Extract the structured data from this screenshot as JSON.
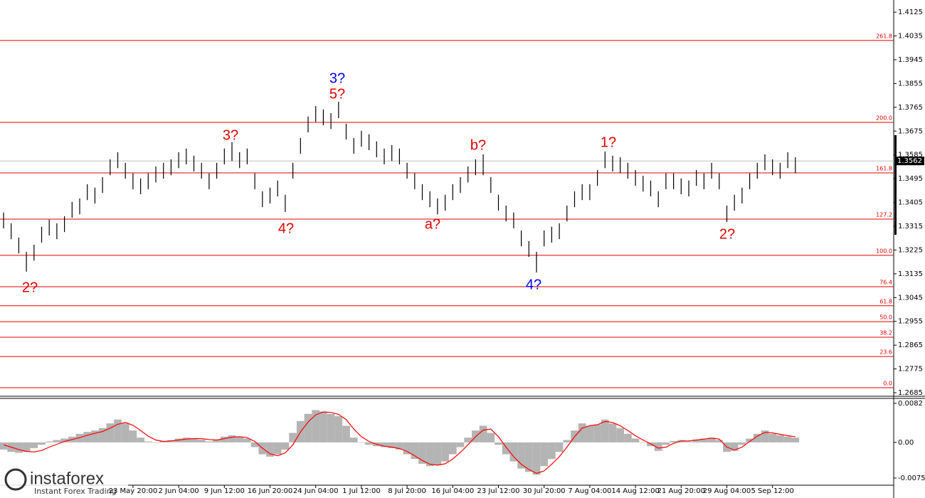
{
  "chart_data": [
    {
      "type": "ohlc-bar",
      "color": "#000000",
      "categories": [
        null,
        null,
        null,
        null,
        null,
        null,
        null,
        null,
        null,
        null,
        null,
        null,
        null,
        null,
        null,
        null,
        null,
        "23 May 20:00",
        null,
        null,
        null,
        null,
        null,
        "2 Jun 04:00",
        null,
        null,
        null,
        null,
        null,
        "9 Jun 12:00",
        null,
        null,
        null,
        null,
        null,
        "16 Jun 20:00",
        null,
        null,
        null,
        null,
        null,
        "24 Jun 04:00",
        null,
        null,
        null,
        null,
        null,
        "1 Jul 12:00",
        null,
        null,
        null,
        null,
        null,
        "8 Jul 20:00",
        null,
        null,
        null,
        null,
        null,
        "16 Jul 04:00",
        null,
        null,
        null,
        null,
        null,
        "23 Jul 12:00",
        null,
        null,
        null,
        null,
        null,
        "30 Jul 20:00",
        null,
        null,
        null,
        null,
        null,
        "7 Aug 04:00",
        null,
        null,
        null,
        null,
        null,
        "14 Aug 12:00",
        null,
        null,
        null,
        null,
        null,
        "21 Aug 20:00",
        null,
        null,
        null,
        null,
        null,
        "29 Aug 04:00",
        null,
        null,
        null,
        null,
        null,
        "5 Sep 12:00",
        null,
        null,
        null
      ],
      "high": [
        1.3367,
        1.3326,
        1.3272,
        1.3218,
        1.3245,
        1.3313,
        1.334,
        1.3326,
        1.3353,
        1.3407,
        1.342,
        1.3474,
        1.3461,
        1.3501,
        1.3568,
        1.3595,
        1.3555,
        1.3515,
        1.3496,
        1.3515,
        1.3541,
        1.3555,
        1.3568,
        1.3595,
        1.3609,
        1.3582,
        1.3555,
        1.3515,
        1.3555,
        1.3609,
        1.3633,
        1.3595,
        1.3609,
        1.3515,
        1.3447,
        1.3461,
        1.3488,
        1.3434,
        1.3555,
        1.3649,
        1.373,
        1.377,
        1.3757,
        1.3743,
        1.3786,
        1.3703,
        1.3649,
        1.3676,
        1.3663,
        1.3636,
        1.3609,
        1.3622,
        1.3609,
        1.3555,
        1.3515,
        1.3474,
        1.3447,
        1.342,
        1.3434,
        1.3474,
        1.3501,
        1.3541,
        1.3568,
        1.3587,
        1.3501,
        1.3434,
        1.3393,
        1.3367,
        1.3299,
        1.3259,
        1.3218,
        1.3299,
        1.3313,
        1.3326,
        1.3393,
        1.3447,
        1.3474,
        1.3474,
        1.3528,
        1.3598,
        1.3582,
        1.3576,
        1.3555,
        1.3528,
        1.3506,
        1.3488,
        1.3447,
        1.3515,
        1.3515,
        1.3496,
        1.3488,
        1.3528,
        1.3515,
        1.3555,
        1.3515,
        1.3393,
        1.3434,
        1.3461,
        1.3515,
        1.3555,
        1.3587,
        1.3568,
        1.3555,
        1.3595,
        1.3576
      ],
      "low": [
        1.3307,
        1.3266,
        1.3212,
        1.3143,
        1.3185,
        1.3253,
        1.328,
        1.3266,
        1.3293,
        1.3347,
        1.336,
        1.3414,
        1.3401,
        1.3441,
        1.3508,
        1.3535,
        1.3495,
        1.3455,
        1.3436,
        1.3455,
        1.3481,
        1.3495,
        1.3508,
        1.3535,
        1.3549,
        1.3522,
        1.3495,
        1.3455,
        1.3495,
        1.3549,
        1.3562,
        1.3535,
        1.3549,
        1.3455,
        1.3387,
        1.3401,
        1.3428,
        1.3369,
        1.3495,
        1.3589,
        1.367,
        1.371,
        1.3697,
        1.3683,
        1.3724,
        1.3643,
        1.3589,
        1.3616,
        1.3603,
        1.3576,
        1.3549,
        1.3562,
        1.3549,
        1.3495,
        1.3455,
        1.3414,
        1.3387,
        1.336,
        1.3374,
        1.3414,
        1.3441,
        1.3481,
        1.3508,
        1.3508,
        1.3441,
        1.3374,
        1.3333,
        1.3307,
        1.3239,
        1.3199,
        1.314,
        1.3239,
        1.3253,
        1.3266,
        1.3333,
        1.3387,
        1.3414,
        1.3414,
        1.3468,
        1.3535,
        1.3522,
        1.3516,
        1.3495,
        1.3468,
        1.3446,
        1.3428,
        1.3387,
        1.3455,
        1.3455,
        1.3436,
        1.3428,
        1.3468,
        1.3455,
        1.3495,
        1.3455,
        1.3331,
        1.3374,
        1.3401,
        1.3455,
        1.3495,
        1.3527,
        1.3508,
        1.3495,
        1.3535,
        1.3516
      ],
      "ylim": [
        1.2677,
        1.4171
      ],
      "yticks": [
        1.4125,
        1.4035,
        1.3945,
        1.3855,
        1.3765,
        1.3675,
        1.3585,
        1.3495,
        1.3405,
        1.3315,
        1.3225,
        1.3135,
        1.3045,
        1.2955,
        1.2865,
        1.2775,
        1.2685
      ],
      "last_price": 1.3562,
      "level_color": "#e00000",
      "levels": [
        {
          "label": "261.8",
          "price": 1.4018
        },
        {
          "label": "200.0",
          "price": 1.3708
        },
        {
          "label": "161.8",
          "price": 1.3517
        },
        {
          "label": "127.2",
          "price": 1.3342
        },
        {
          "label": "100.0",
          "price": 1.3205
        },
        {
          "label": "76.4",
          "price": 1.3086
        },
        {
          "label": "61.8",
          "price": 1.3014
        },
        {
          "label": "50.0",
          "price": 1.2954
        },
        {
          "label": "38.2",
          "price": 1.2895
        },
        {
          "label": "23.6",
          "price": 1.2822
        },
        {
          "label": "0.0",
          "price": 1.2704
        }
      ],
      "annotations": [
        {
          "text": "2?",
          "color": "#e00000"
        },
        {
          "text": "3?",
          "color": "#e00000"
        },
        {
          "text": "4?",
          "color": "#e00000"
        },
        {
          "text": "3?",
          "color": "#0000ff"
        },
        {
          "text": "5?",
          "color": "#e00000"
        },
        {
          "text": "a?",
          "color": "#e00000"
        },
        {
          "text": "b?",
          "color": "#e00000"
        },
        {
          "text": "4?",
          "color": "#0000ff"
        },
        {
          "text": "1?",
          "color": "#e00000"
        },
        {
          "text": "2?",
          "color": "#e00000"
        }
      ]
    },
    {
      "type": "macd",
      "histogram_color": "#b4b4b4",
      "signal_color": "#ff0000",
      "histogram": [
        -0.0015,
        -0.002,
        -0.0022,
        -0.002,
        -0.0012,
        -0.0005,
        0.0002,
        0.0005,
        0.0008,
        0.0012,
        0.0018,
        0.0022,
        0.0025,
        0.003,
        0.004,
        0.0048,
        0.004,
        0.0025,
        0.001,
        0.0002,
        -0.0001,
        0.0003,
        0.0005,
        0.0008,
        0.001,
        0.0009,
        0.0006,
        0.0002,
        0.0006,
        0.0012,
        0.0015,
        0.0012,
        0.0008,
        -0.001,
        -0.0025,
        -0.003,
        -0.0025,
        -0.0015,
        0.002,
        0.0045,
        0.006,
        0.0068,
        0.0065,
        0.006,
        0.0055,
        0.0035,
        0.001,
        0.0,
        -0.0005,
        -0.0008,
        -0.001,
        -0.0012,
        -0.0015,
        -0.0025,
        -0.0035,
        -0.0045,
        -0.005,
        -0.0048,
        -0.004,
        -0.0025,
        -0.001,
        0.001,
        0.0025,
        0.0035,
        0.002,
        -0.0005,
        -0.0025,
        -0.004,
        -0.0055,
        -0.0062,
        -0.0068,
        -0.005,
        -0.0035,
        -0.002,
        0.0005,
        0.0025,
        0.004,
        0.0035,
        0.0038,
        0.0048,
        0.004,
        0.003,
        0.0018,
        0.0008,
        0.0,
        -0.0008,
        -0.0018,
        -0.0005,
        0.0003,
        0.0005,
        0.0002,
        0.0006,
        0.0008,
        0.001,
        0.0005,
        -0.002,
        -0.0018,
        -0.0005,
        0.0008,
        0.0018,
        0.0025,
        0.0018,
        0.0015,
        0.0012,
        0.001
      ],
      "signal": [
        -0.0005,
        -0.001,
        -0.0015,
        -0.0019,
        -0.002,
        -0.0017,
        -0.001,
        -0.0004,
        0.0002,
        0.0006,
        0.001,
        0.0015,
        0.0019,
        0.0023,
        0.003,
        0.0038,
        0.0042,
        0.0036,
        0.0025,
        0.0013,
        0.0005,
        0.0002,
        0.0003,
        0.0005,
        0.0007,
        0.0008,
        0.0008,
        0.0006,
        0.0005,
        0.0008,
        0.0011,
        0.0012,
        0.001,
        0.0002,
        -0.0012,
        -0.0024,
        -0.0028,
        -0.0022,
        -0.0005,
        0.0022,
        0.0043,
        0.0058,
        0.0064,
        0.0063,
        0.0059,
        0.0048,
        0.0028,
        0.0012,
        0.0002,
        -0.0004,
        -0.0008,
        -0.001,
        -0.0013,
        -0.0019,
        -0.0028,
        -0.0038,
        -0.0046,
        -0.0048,
        -0.0045,
        -0.0035,
        -0.0021,
        -0.0005,
        0.0012,
        0.0026,
        0.0028,
        0.0012,
        -0.001,
        -0.003,
        -0.0046,
        -0.0057,
        -0.0065,
        -0.006,
        -0.0046,
        -0.003,
        -0.001,
        0.0012,
        0.003,
        0.0035,
        0.0037,
        0.0044,
        0.0042,
        0.0035,
        0.0025,
        0.0014,
        0.0005,
        -0.0003,
        -0.0012,
        -0.001,
        -0.0002,
        0.0003,
        0.0003,
        0.0005,
        0.0007,
        0.0009,
        0.0007,
        -0.001,
        -0.0016,
        -0.001,
        0.0002,
        0.0013,
        0.0021,
        0.002,
        0.0017,
        0.0014,
        0.0012
      ],
      "ylim": [
        -0.0087,
        0.00925
      ],
      "yticks": [
        0.0082,
        {
          "value": 0,
          "label": "0.00"
        },
        -0.0075
      ]
    }
  ],
  "branding": {
    "logo": "instaforex",
    "tagline": "Instant Forex Trading"
  }
}
